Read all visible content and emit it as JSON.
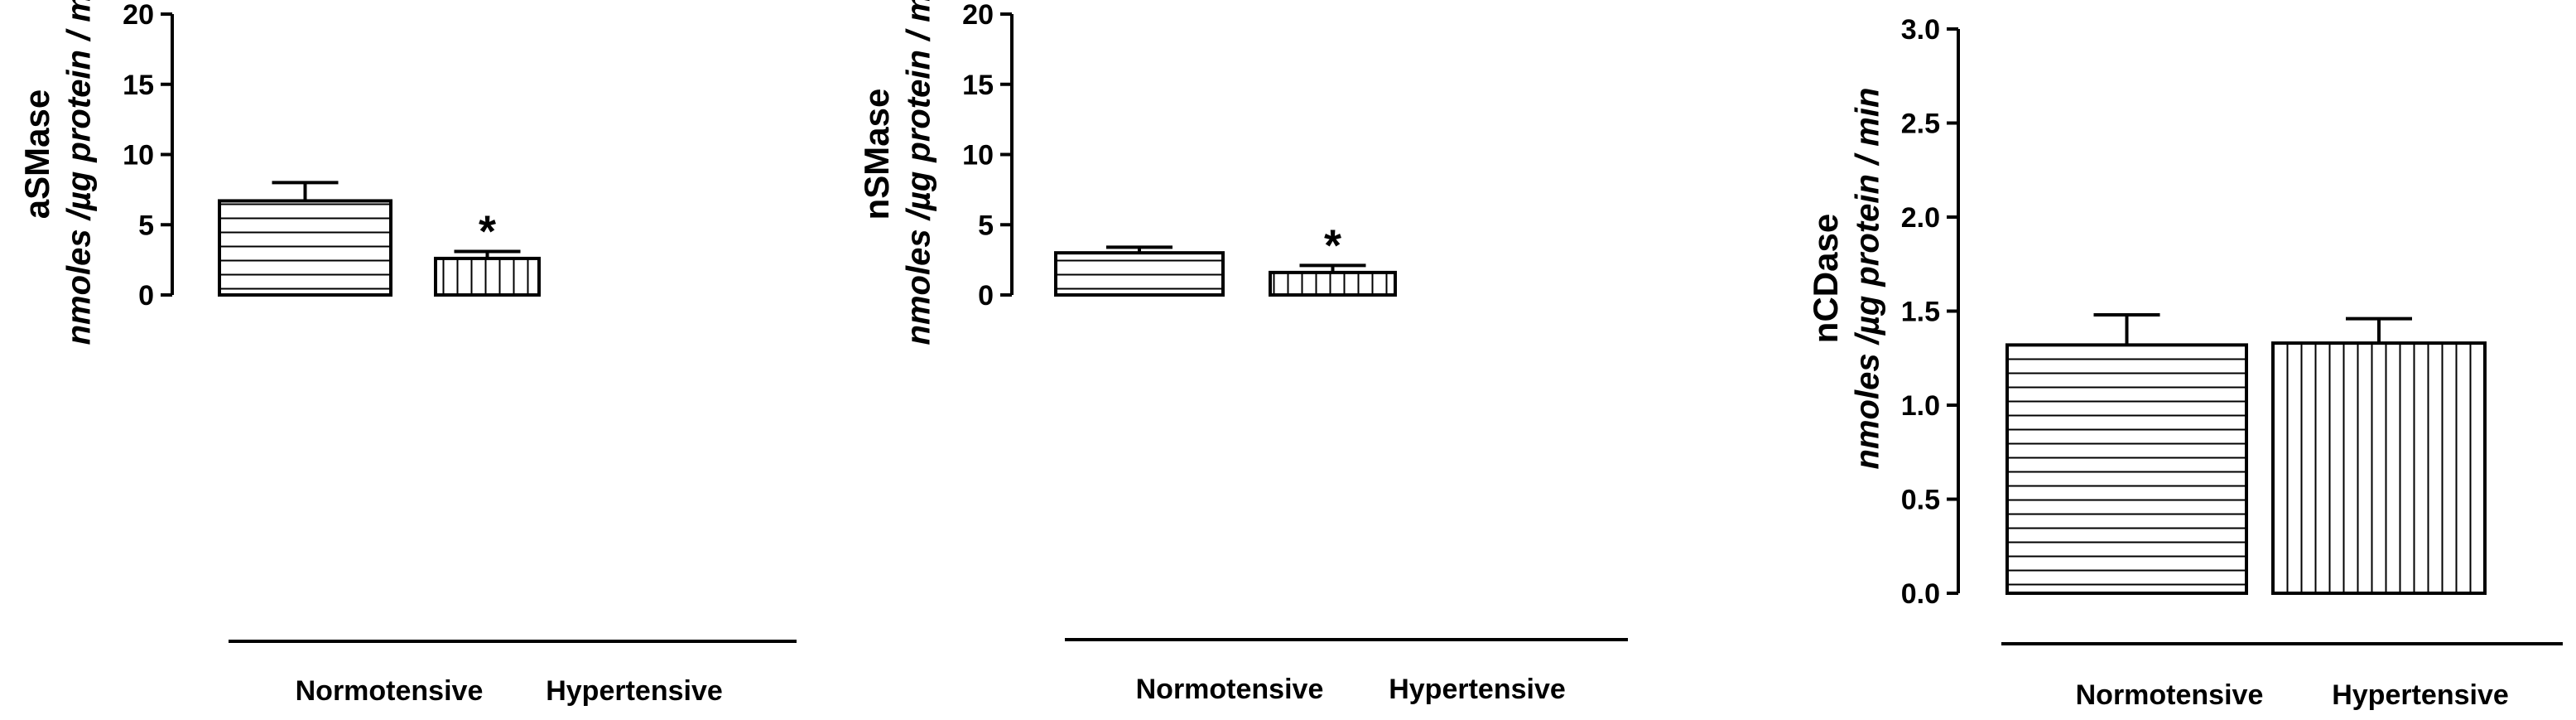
{
  "chart_data": [
    {
      "type": "bar",
      "ylabel_main": "aSMase",
      "ylabel_unit": "nmoles /µg protein / min",
      "ylim": [
        0,
        20
      ],
      "yticks": [
        "0",
        "5",
        "10",
        "15",
        "20"
      ],
      "categories": [
        "Normotensive",
        "Hypertensive"
      ],
      "values": [
        6.7,
        2.6
      ],
      "errors": [
        1.3,
        0.5
      ],
      "significance": [
        "",
        "*"
      ],
      "patterns": [
        "horizontal",
        "vertical"
      ]
    },
    {
      "type": "bar",
      "ylabel_main": "nSMase",
      "ylabel_unit": "nmoles /µg protein / min",
      "ylim": [
        0,
        20
      ],
      "yticks": [
        "0",
        "5",
        "10",
        "15",
        "20"
      ],
      "categories": [
        "Normotensive",
        "Hypertensive"
      ],
      "values": [
        3.0,
        1.6
      ],
      "errors": [
        0.4,
        0.5
      ],
      "significance": [
        "",
        "*"
      ],
      "patterns": [
        "horizontal",
        "vertical"
      ]
    },
    {
      "type": "bar",
      "ylabel_main": "nCDase",
      "ylabel_unit": "nmoles /µg protein / min",
      "ylim": [
        0,
        3.0
      ],
      "yticks": [
        "0.0",
        "0.5",
        "1.0",
        "1.5",
        "2.0",
        "2.5",
        "3.0"
      ],
      "categories": [
        "Normotensive",
        "Hypertensive"
      ],
      "values": [
        1.32,
        1.33
      ],
      "errors": [
        0.16,
        0.13
      ],
      "significance": [
        "",
        ""
      ],
      "patterns": [
        "horizontal",
        "vertical"
      ]
    }
  ]
}
